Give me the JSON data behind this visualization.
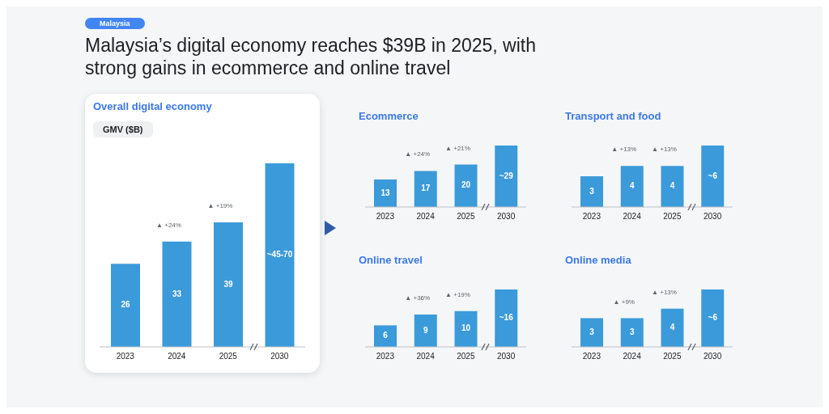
{
  "chart_data": [
    {
      "type": "other",
      "title": "Malaysia’s digital economy reaches $39B in 2025, with strong gains in ecommerce and online travel",
      "annotations": [
        "Malaysia"
      ]
    },
    {
      "type": "bar",
      "title": "Overall digital economy",
      "ylabel": "GMV ($B)",
      "categories": [
        "2023",
        "2024",
        "2025",
        "2030"
      ],
      "values": [
        26,
        33,
        39,
        57.5
      ],
      "value_labels": [
        "26",
        "33",
        "39",
        "~45-70"
      ],
      "color": "#3b9ad9",
      "annotations": [
        "▲ +24%",
        "▲ +19%"
      ]
    },
    {
      "type": "bar",
      "title": "Ecommerce",
      "categories": [
        "2023",
        "2024",
        "2025",
        "2030"
      ],
      "values": [
        13,
        17,
        20,
        29
      ],
      "value_labels": [
        "13",
        "17",
        "20",
        "~29"
      ],
      "color": "#3b9ad9",
      "annotations": [
        "▲ +24%",
        "▲ +21%"
      ]
    },
    {
      "type": "bar",
      "title": "Transport and food",
      "categories": [
        "2023",
        "2024",
        "2025",
        "2030"
      ],
      "values": [
        3,
        4,
        4,
        6
      ],
      "value_labels": [
        "3",
        "4",
        "4",
        "~6"
      ],
      "color": "#3b9ad9",
      "annotations": [
        "▲ +13%",
        "▲ +13%"
      ]
    },
    {
      "type": "bar",
      "title": "Online travel",
      "categories": [
        "2023",
        "2024",
        "2025",
        "2030"
      ],
      "values": [
        6,
        9,
        10,
        16
      ],
      "value_labels": [
        "6",
        "9",
        "10",
        "~16"
      ],
      "color": "#3b9ad9",
      "annotations": [
        "▲ +36%",
        "▲ +19%"
      ]
    },
    {
      "type": "bar",
      "title": "Online media",
      "categories": [
        "2023",
        "2024",
        "2025",
        "2030"
      ],
      "values": [
        3,
        3,
        4,
        6
      ],
      "value_labels": [
        "3",
        "3",
        "4",
        "~6"
      ],
      "color": "#3b9ad9",
      "annotations": [
        "▲ +9%",
        "▲ +13%"
      ]
    }
  ]
}
